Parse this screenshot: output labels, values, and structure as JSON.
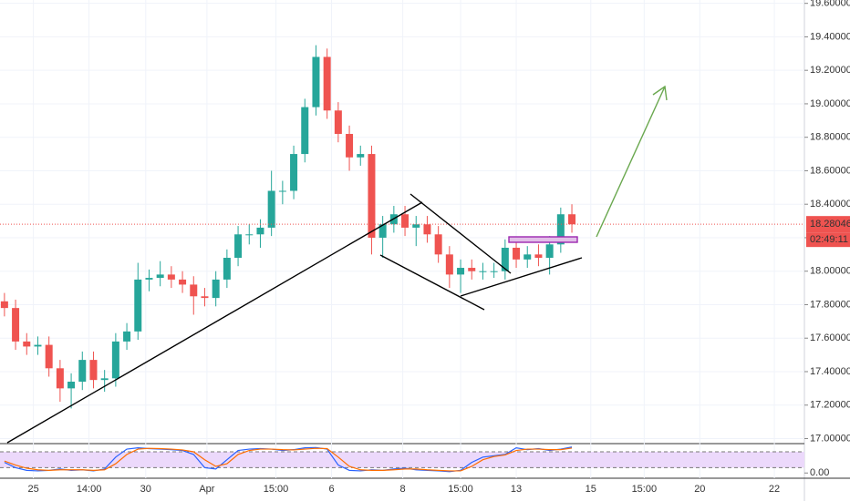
{
  "chart_data": [
    {
      "type": "candlestick",
      "up_color": "#26a69a",
      "down_color": "#ef5350",
      "open": [
        17.82,
        17.78,
        17.58,
        17.55,
        17.56,
        17.42,
        17.3,
        17.34,
        17.47,
        17.35,
        17.36,
        17.58,
        17.64,
        17.95,
        17.96,
        17.98,
        17.95,
        17.92,
        17.85,
        17.84,
        17.95,
        18.08,
        18.22,
        18.22,
        18.26,
        18.48,
        18.48,
        18.7,
        18.98,
        19.28,
        18.96,
        18.82,
        18.68,
        18.7,
        18.2,
        18.28,
        18.34,
        18.26,
        18.28,
        18.22,
        18.1,
        17.98,
        18.02,
        18.0,
        18.0,
        18.0,
        18.14,
        18.07,
        18.1,
        18.08,
        18.16,
        18.34
      ],
      "high": [
        17.87,
        17.83,
        17.63,
        17.61,
        17.61,
        17.47,
        17.39,
        17.52,
        17.52,
        17.41,
        17.63,
        17.69,
        18.05,
        18.01,
        18.06,
        18.03,
        18.0,
        17.97,
        17.9,
        18.0,
        18.13,
        18.27,
        18.28,
        18.31,
        18.6,
        18.54,
        18.75,
        19.03,
        19.35,
        19.33,
        19.01,
        18.87,
        18.75,
        18.75,
        18.33,
        18.39,
        18.39,
        18.33,
        18.33,
        18.27,
        18.15,
        18.07,
        18.07,
        18.05,
        18.05,
        18.19,
        18.19,
        18.15,
        18.16,
        18.21,
        18.38,
        18.4
      ],
      "low": [
        17.73,
        17.53,
        17.5,
        17.5,
        17.37,
        17.22,
        17.18,
        17.29,
        17.3,
        17.28,
        17.31,
        17.53,
        17.59,
        17.88,
        17.91,
        17.9,
        17.87,
        17.74,
        17.79,
        17.79,
        17.9,
        18.03,
        18.16,
        18.14,
        18.21,
        18.4,
        18.43,
        18.65,
        18.93,
        18.91,
        18.77,
        18.6,
        18.63,
        18.1,
        18.08,
        18.23,
        18.21,
        18.15,
        18.17,
        18.05,
        17.9,
        17.87,
        17.95,
        17.95,
        17.96,
        17.95,
        18.02,
        18.02,
        18.03,
        17.98,
        18.11,
        18.23
      ],
      "close": [
        17.78,
        17.58,
        17.55,
        17.56,
        17.42,
        17.3,
        17.34,
        17.47,
        17.35,
        17.36,
        17.58,
        17.64,
        17.95,
        17.96,
        17.98,
        17.95,
        17.92,
        17.85,
        17.84,
        17.95,
        18.08,
        18.22,
        18.22,
        18.26,
        18.48,
        18.48,
        18.7,
        18.98,
        19.28,
        18.96,
        18.82,
        18.68,
        18.7,
        18.2,
        18.28,
        18.34,
        18.26,
        18.28,
        18.22,
        18.1,
        17.98,
        18.02,
        18.0,
        18.0,
        18.0,
        18.14,
        18.07,
        18.1,
        18.08,
        18.16,
        18.34,
        18.28
      ],
      "ylim": [
        16.97,
        19.62
      ],
      "yticks": [
        {
          "value": 17.0,
          "label": "17.00000"
        },
        {
          "value": 17.2,
          "label": "17.20000"
        },
        {
          "value": 17.4,
          "label": "17.40000"
        },
        {
          "value": 17.6,
          "label": "17.60000"
        },
        {
          "value": 17.8,
          "label": "17.80000"
        },
        {
          "value": 18.0,
          "label": "18.00000"
        },
        {
          "value": 18.2,
          "label": "18.20000"
        },
        {
          "value": 18.4,
          "label": "18.40000"
        },
        {
          "value": 18.6,
          "label": "18.60000"
        },
        {
          "value": 18.8,
          "label": "18.80000"
        },
        {
          "value": 19.0,
          "label": "19.00000"
        },
        {
          "value": 19.2,
          "label": "19.20000"
        },
        {
          "value": 19.4,
          "label": "19.40000"
        },
        {
          "value": 19.6,
          "label": "19.60000"
        }
      ],
      "xlim": [
        -0.4,
        71.9
      ],
      "xticks": [
        {
          "value": 2.6,
          "label": "25"
        },
        {
          "value": 7.6,
          "label": "14:00"
        },
        {
          "value": 12.7,
          "label": "30"
        },
        {
          "value": 18.2,
          "label": "Apr"
        },
        {
          "value": 24.4,
          "label": "15:00"
        },
        {
          "value": 29.4,
          "label": "6"
        },
        {
          "value": 35.8,
          "label": "8"
        },
        {
          "value": 41.0,
          "label": "15:00"
        },
        {
          "value": 46.0,
          "label": "13"
        },
        {
          "value": 52.7,
          "label": "15"
        },
        {
          "value": 57.5,
          "label": "15:00"
        },
        {
          "value": 62.5,
          "label": "20"
        },
        {
          "value": 69.2,
          "label": "22"
        }
      ],
      "grid": true,
      "last_price": 18.28046,
      "countdown": "02:49:11"
    },
    {
      "type": "line",
      "series": [
        {
          "color": "#2962ff",
          "values": [
            40,
            20,
            10,
            8,
            10,
            15,
            10,
            12,
            8,
            15,
            60,
            90,
            95,
            92,
            90,
            88,
            85,
            70,
            20,
            15,
            50,
            85,
            90,
            92,
            90,
            85,
            88,
            95,
            96,
            90,
            30,
            10,
            8,
            12,
            10,
            15,
            18,
            12,
            10,
            8,
            5,
            10,
            40,
            60,
            65,
            70,
            95,
            88,
            92,
            85,
            90,
            98
          ]
        },
        {
          "color": "#ff6d00",
          "values": [
            45,
            30,
            18,
            12,
            10,
            12,
            12,
            12,
            10,
            12,
            35,
            70,
            90,
            93,
            92,
            90,
            87,
            80,
            50,
            25,
            35,
            70,
            85,
            90,
            90,
            88,
            87,
            90,
            93,
            92,
            60,
            25,
            12,
            10,
            10,
            12,
            15,
            15,
            12,
            10,
            8,
            8,
            25,
            50,
            62,
            68,
            85,
            90,
            90,
            88,
            88,
            94
          ]
        }
      ],
      "bands": [
        20,
        80
      ],
      "band_color": "#ecd9fb",
      "ylim": [
        -6,
        104
      ],
      "yticks": [
        {
          "value": 0,
          "label": "0.00"
        }
      ]
    }
  ]
}
